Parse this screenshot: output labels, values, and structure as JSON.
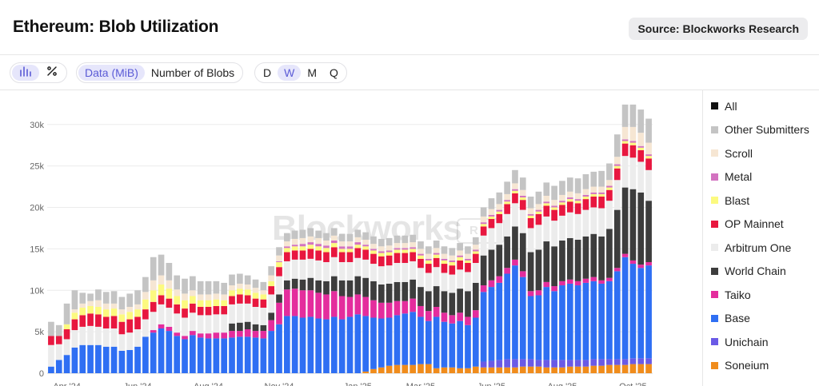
{
  "header": {
    "title": "Ethereum: Blob Utilization",
    "source_label": "Source: Blockworks Research"
  },
  "toolbar": {
    "chart_types": [
      {
        "icon": "bar-chart-icon",
        "active": true
      },
      {
        "icon": "percent-icon",
        "active": false
      }
    ],
    "metrics": [
      {
        "label": "Data (MiB)",
        "active": true
      },
      {
        "label": "Number of Blobs",
        "active": false
      }
    ],
    "intervals": [
      {
        "label": "D",
        "active": false
      },
      {
        "label": "W",
        "active": true
      },
      {
        "label": "M",
        "active": false
      },
      {
        "label": "Q",
        "active": false
      }
    ]
  },
  "watermark": "Blockworks",
  "chart_data": {
    "type": "bar",
    "stacked": true,
    "interval": "weekly",
    "x_tick_labels": [
      "Apr '24",
      "Jun '24",
      "Aug '24",
      "Nov '24",
      "Jan '25",
      "Mar '25",
      "Jun '25",
      "Aug '25",
      "Oct '25"
    ],
    "x_tick_positions": [
      2,
      11,
      20,
      29,
      39,
      47,
      56,
      65,
      74
    ],
    "y_tick_labels": [
      "0",
      "5k",
      "10k",
      "15k",
      "20k",
      "25k",
      "30k"
    ],
    "ylim": [
      0,
      32000
    ],
    "grid": true,
    "legend_position": "right",
    "colors": {
      "All": "#111111",
      "Other Submitters": "#c4c4c4",
      "Scroll": "#f6e6d3",
      "Metal": "#d373c0",
      "Blast": "#fcfa7f",
      "OP Mainnet": "#e8173f",
      "Arbitrum One": "#ececec",
      "World Chain": "#3d3d3d",
      "Taiko": "#e42d9d",
      "Base": "#2f6ff3",
      "Unichain": "#6a5ae6",
      "Soneium": "#f08c1c"
    },
    "legend": [
      "All",
      "Other Submitters",
      "Scroll",
      "Metal",
      "Blast",
      "OP Mainnet",
      "Arbitrum One",
      "World Chain",
      "Taiko",
      "Base",
      "Unichain",
      "Soneium"
    ],
    "series_order": [
      "Soneium",
      "Unichain",
      "Base",
      "Taiko",
      "World Chain",
      "Arbitrum One",
      "OP Mainnet",
      "Blast",
      "Metal",
      "Scroll",
      "Other Submitters"
    ],
    "series": [
      {
        "name": "Soneium",
        "values": [
          0,
          0,
          0,
          0,
          0,
          0,
          0,
          0,
          0,
          0,
          0,
          0,
          0,
          0,
          0,
          0,
          0,
          0,
          0,
          0,
          0,
          0,
          0,
          0,
          0,
          0,
          0,
          0,
          0,
          0,
          0,
          0,
          0,
          0,
          0,
          0,
          0,
          0,
          0,
          0,
          200,
          500,
          700,
          900,
          1000,
          1000,
          1000,
          1100,
          1100,
          600,
          700,
          700,
          600,
          600,
          800,
          700,
          700,
          700,
          700,
          700,
          800,
          800,
          800,
          700,
          700,
          700,
          800,
          800,
          800,
          900,
          900,
          1000,
          1000,
          1000,
          1100,
          1100,
          1100
        ]
      },
      {
        "name": "Unichain",
        "values": [
          0,
          0,
          0,
          0,
          0,
          0,
          0,
          0,
          0,
          0,
          0,
          0,
          0,
          0,
          0,
          0,
          0,
          0,
          0,
          0,
          0,
          0,
          0,
          0,
          0,
          0,
          0,
          0,
          0,
          0,
          0,
          0,
          0,
          0,
          0,
          0,
          0,
          0,
          0,
          0,
          0,
          0,
          0,
          0,
          0,
          0,
          0,
          0,
          0,
          0,
          0,
          0,
          0,
          0,
          0,
          700,
          800,
          900,
          1000,
          1000,
          900,
          900,
          800,
          900,
          900,
          900,
          800,
          800,
          800,
          800,
          800,
          700,
          700,
          700,
          700,
          700,
          700
        ]
      },
      {
        "name": "Base",
        "values": [
          800,
          1600,
          2200,
          3100,
          3400,
          3400,
          3400,
          3200,
          3200,
          2700,
          2800,
          3200,
          4400,
          4900,
          5400,
          5100,
          4500,
          4100,
          4600,
          4300,
          4200,
          4200,
          4200,
          4300,
          4400,
          4400,
          4300,
          4200,
          5100,
          5900,
          6900,
          6900,
          6700,
          6800,
          6600,
          6500,
          6800,
          6500,
          6800,
          7100,
          6700,
          6200,
          5900,
          5800,
          6000,
          6200,
          6400,
          5700,
          5200,
          6200,
          5500,
          5300,
          5700,
          5200,
          5900,
          8400,
          8900,
          9300,
          10300,
          11300,
          9900,
          7600,
          7800,
          8800,
          8300,
          9000,
          9200,
          9000,
          9300,
          9400,
          9100,
          9400,
          10600,
          12300,
          11400,
          10900,
          11200
        ]
      },
      {
        "name": "Taiko",
        "values": [
          0,
          0,
          0,
          0,
          0,
          0,
          0,
          0,
          0,
          0,
          0,
          0,
          0,
          300,
          500,
          500,
          400,
          400,
          500,
          500,
          600,
          700,
          700,
          800,
          700,
          900,
          800,
          900,
          1300,
          2600,
          3200,
          3300,
          3300,
          3200,
          3100,
          3000,
          3100,
          2800,
          2400,
          2400,
          2300,
          2100,
          1900,
          1800,
          1700,
          1500,
          1600,
          1300,
          1200,
          1200,
          1100,
          1000,
          1000,
          1000,
          900,
          800,
          800,
          800,
          700,
          700,
          700,
          600,
          600,
          600,
          600,
          500,
          500,
          500,
          500,
          500,
          400,
          400,
          400,
          400,
          400,
          400,
          400
        ]
      },
      {
        "name": "World Chain",
        "values": [
          0,
          0,
          0,
          0,
          0,
          0,
          0,
          0,
          0,
          0,
          0,
          0,
          0,
          0,
          0,
          0,
          0,
          0,
          0,
          0,
          0,
          0,
          0,
          900,
          1000,
          900,
          800,
          700,
          900,
          1000,
          1100,
          1200,
          1300,
          1500,
          1500,
          1600,
          1800,
          1900,
          2000,
          2200,
          2300,
          2300,
          2200,
          2300,
          2300,
          2300,
          2300,
          2300,
          2400,
          2500,
          2600,
          2700,
          2900,
          3100,
          3300,
          3600,
          3700,
          3800,
          3800,
          4000,
          4600,
          4700,
          4900,
          4900,
          4800,
          4900,
          5000,
          5000,
          5100,
          5200,
          5300,
          5900,
          7000,
          8000,
          8600,
          8700,
          7400
        ]
      },
      {
        "name": "Arbitrum One",
        "values": [
          2600,
          1900,
          1900,
          2100,
          2200,
          2300,
          2200,
          2200,
          2200,
          2000,
          2100,
          2100,
          2100,
          2200,
          2400,
          2300,
          2300,
          2200,
          2200,
          2200,
          2200,
          2200,
          2200,
          2300,
          2300,
          2200,
          2100,
          2100,
          2200,
          2200,
          2300,
          2300,
          2400,
          2300,
          2400,
          2300,
          2300,
          2200,
          2200,
          2200,
          2200,
          2100,
          2200,
          2200,
          2300,
          2300,
          2200,
          2300,
          2200,
          2300,
          2200,
          2200,
          2300,
          2300,
          2400,
          2400,
          2600,
          2600,
          2700,
          2800,
          2800,
          2900,
          3000,
          3000,
          3100,
          3000,
          3100,
          3100,
          3200,
          3200,
          3400,
          3400,
          3600,
          3800,
          3800,
          3700,
          3700
        ]
      },
      {
        "name": "OP Mainnet",
        "values": [
          1100,
          1000,
          1200,
          1300,
          1400,
          1500,
          1500,
          1400,
          1500,
          1500,
          1600,
          1500,
          1200,
          1200,
          1100,
          1100,
          1100,
          1100,
          1100,
          1000,
          1000,
          1000,
          1000,
          1000,
          1100,
          1000,
          1000,
          1000,
          1000,
          1100,
          1100,
          1100,
          1100,
          1200,
          1200,
          1200,
          1200,
          1200,
          1200,
          1200,
          1200,
          1200,
          1200,
          1200,
          1200,
          1200,
          1100,
          1100,
          1100,
          1100,
          1100,
          1100,
          1100,
          1100,
          1100,
          1100,
          1100,
          1100,
          1200,
          1200,
          1200,
          1200,
          1300,
          1300,
          1300,
          1300,
          1300,
          1300,
          1300,
          1300,
          1400,
          1300,
          1400,
          1500,
          1500,
          1400,
          1400
        ]
      },
      {
        "name": "Blast",
        "values": [
          0,
          0,
          600,
          800,
          900,
          900,
          900,
          900,
          900,
          900,
          900,
          900,
          1200,
          1400,
          1300,
          1200,
          1000,
          1000,
          900,
          800,
          800,
          800,
          700,
          700,
          700,
          700,
          700,
          600,
          600,
          600,
          500,
          500,
          500,
          500,
          500,
          500,
          500,
          400,
          400,
          400,
          400,
          400,
          400,
          400,
          400,
          400,
          400,
          400,
          400,
          400,
          400,
          400,
          400,
          300,
          300,
          300,
          300,
          300,
          300,
          300,
          300,
          300,
          300,
          300,
          300,
          300,
          300,
          300,
          300,
          300,
          300,
          300,
          300,
          300,
          300,
          300,
          300
        ]
      },
      {
        "name": "Metal",
        "values": [
          0,
          0,
          0,
          0,
          0,
          0,
          0,
          0,
          0,
          0,
          0,
          0,
          0,
          0,
          0,
          0,
          0,
          0,
          0,
          0,
          0,
          0,
          0,
          0,
          0,
          0,
          0,
          0,
          0,
          100,
          200,
          200,
          300,
          300,
          300,
          300,
          300,
          300,
          300,
          300,
          200,
          200,
          200,
          200,
          200,
          200,
          200,
          200,
          200,
          200,
          200,
          200,
          200,
          200,
          200,
          200,
          200,
          200,
          200,
          200,
          200,
          200,
          200,
          200,
          200,
          200,
          200,
          200,
          200,
          200,
          200,
          200,
          200,
          200,
          200,
          200,
          200
        ]
      },
      {
        "name": "Scroll",
        "values": [
          0,
          0,
          0,
          400,
          500,
          600,
          800,
          700,
          600,
          600,
          600,
          600,
          900,
          1200,
          1100,
          1000,
          800,
          800,
          700,
          700,
          700,
          700,
          700,
          600,
          600,
          600,
          600,
          500,
          700,
          700,
          600,
          700,
          700,
          700,
          700,
          600,
          600,
          600,
          600,
          600,
          600,
          600,
          600,
          600,
          600,
          600,
          600,
          600,
          600,
          600,
          600,
          600,
          600,
          600,
          600,
          700,
          700,
          700,
          700,
          700,
          700,
          700,
          700,
          700,
          700,
          700,
          700,
          700,
          700,
          700,
          700,
          700,
          900,
          1500,
          1700,
          1600,
          1400
        ]
      },
      {
        "name": "Other Submitters",
        "values": [
          1700,
          1300,
          2500,
          2300,
          1300,
          900,
          1300,
          1400,
          1500,
          1500,
          1600,
          1700,
          1800,
          2800,
          2500,
          2100,
          1700,
          1800,
          1700,
          1600,
          1600,
          1500,
          1400,
          1300,
          1200,
          1100,
          1000,
          1000,
          1100,
          1000,
          1000,
          1000,
          1000,
          1000,
          900,
          900,
          900,
          900,
          900,
          900,
          900,
          900,
          900,
          900,
          900,
          900,
          900,
          900,
          900,
          900,
          900,
          900,
          900,
          900,
          900,
          1100,
          1300,
          1400,
          1500,
          1600,
          1500,
          1400,
          1500,
          1600,
          1700,
          1700,
          1700,
          1800,
          1800,
          1800,
          1900,
          2000,
          2700,
          2700,
          2700,
          2800,
          2900
        ]
      }
    ]
  }
}
